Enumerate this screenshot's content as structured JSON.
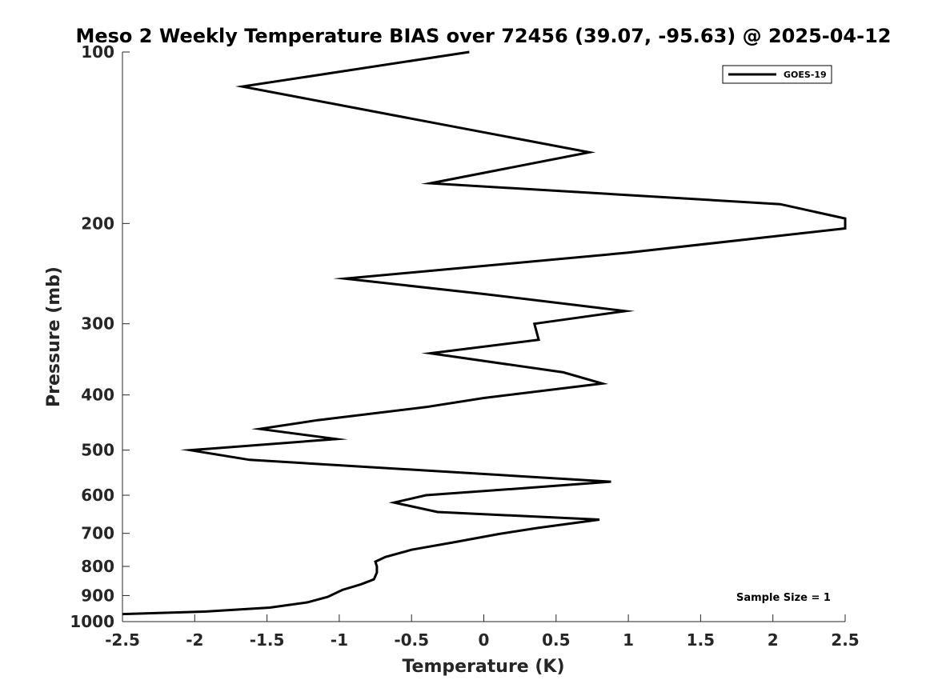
{
  "chart_data": {
    "type": "line",
    "title": "Meso 2 Weekly Temperature BIAS over 72456 (39.07, -95.63) @ 2025-04-12",
    "xlabel": "Temperature (K)",
    "ylabel": "Pressure (mb)",
    "xlim": [
      -2.5,
      2.5
    ],
    "ylim": [
      100,
      1000
    ],
    "yscale": "log",
    "yreversed": true,
    "xticks": [
      -2.5,
      -2,
      -1.5,
      -1,
      -0.5,
      0,
      0.5,
      1,
      1.5,
      2,
      2.5
    ],
    "xtick_labels": [
      "-2.5",
      "-2",
      "-1.5",
      "-1",
      "-0.5",
      "0",
      "0.5",
      "1",
      "1.5",
      "2",
      "2.5"
    ],
    "yticks": [
      100,
      200,
      300,
      400,
      500,
      600,
      700,
      800,
      900,
      1000
    ],
    "ytick_labels": [
      "100",
      "200",
      "300",
      "400",
      "500",
      "600",
      "700",
      "800",
      "900",
      "1000"
    ],
    "legend_position": "top-right",
    "annotation": "Sample Size = 1",
    "series": [
      {
        "name": "GOES-19",
        "color": "#000000",
        "points": [
          [
            -0.1,
            100
          ],
          [
            -1.67,
            115
          ],
          [
            0.73,
            150
          ],
          [
            -0.37,
            170
          ],
          [
            2.05,
            185
          ],
          [
            2.5,
            196
          ],
          [
            2.5,
            204
          ],
          [
            1.0,
            225
          ],
          [
            -0.96,
            250
          ],
          [
            0.0,
            266
          ],
          [
            0.98,
            285
          ],
          [
            0.35,
            300
          ],
          [
            0.38,
            320
          ],
          [
            -0.37,
            338
          ],
          [
            0.55,
            365
          ],
          [
            0.82,
            382
          ],
          [
            0.0,
            405
          ],
          [
            -0.4,
            420
          ],
          [
            -1.15,
            443
          ],
          [
            -1.55,
            459
          ],
          [
            -1.02,
            478
          ],
          [
            -2.03,
            500
          ],
          [
            -1.62,
            520
          ],
          [
            0.88,
            568
          ],
          [
            0.2,
            585
          ],
          [
            -0.4,
            600
          ],
          [
            -0.62,
            618
          ],
          [
            -0.32,
            642
          ],
          [
            0.8,
            662
          ],
          [
            0.37,
            685
          ],
          [
            0.1,
            702
          ],
          [
            -0.2,
            725
          ],
          [
            -0.5,
            748
          ],
          [
            -0.68,
            770
          ],
          [
            -0.75,
            785
          ],
          [
            -0.74,
            800
          ],
          [
            -0.74,
            820
          ],
          [
            -0.76,
            843
          ],
          [
            -0.85,
            860
          ],
          [
            -0.98,
            880
          ],
          [
            -1.08,
            905
          ],
          [
            -1.22,
            925
          ],
          [
            -1.48,
            945
          ],
          [
            -1.92,
            960
          ],
          [
            -2.5,
            970
          ]
        ]
      }
    ]
  }
}
